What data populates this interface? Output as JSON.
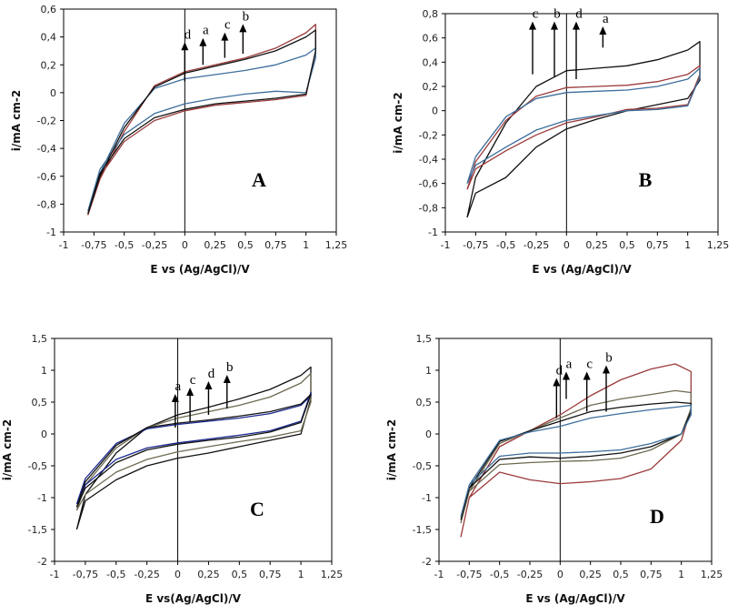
{
  "colors": {
    "black": "#111111",
    "red": "#9b3a3a",
    "blue": "#3d6e9c",
    "olive": "#6e6a52",
    "navy": "#1a2890"
  },
  "chart_data": [
    {
      "type": "line",
      "panel_label": "A",
      "xlabel": "E vs (Ag/AgCl)/V",
      "ylabel": "i/mA cm-2",
      "xlim": [
        -1,
        1.25
      ],
      "ylim": [
        -1,
        0.6
      ],
      "xticks": [
        "-1",
        "-0,75",
        "-0,5",
        "-0,25",
        "0",
        "0,25",
        "0,5",
        "0,75",
        "1",
        "1,25"
      ],
      "yticks": [
        "0,6",
        "0,4",
        "0,2",
        "0",
        "-0,2",
        "-0,4",
        "-0,6",
        "-0,8",
        "-1"
      ],
      "arrows": [
        {
          "label": "d",
          "x": 0.0,
          "y_from": 0.08,
          "y_to": 0.35
        },
        {
          "label": "a",
          "x": 0.15,
          "y_from": 0.2,
          "y_to": 0.38
        },
        {
          "label": "c",
          "x": 0.33,
          "y_from": 0.25,
          "y_to": 0.42
        },
        {
          "label": "b",
          "x": 0.48,
          "y_from": 0.28,
          "y_to": 0.48
        }
      ],
      "series": [
        {
          "color": "#9b3a3a",
          "x": [
            -0.8,
            -0.7,
            -0.5,
            -0.25,
            0,
            0.25,
            0.5,
            0.75,
            1.0,
            1.08,
            1.08,
            1.0,
            0.75,
            0.5,
            0.25,
            0,
            -0.25,
            -0.5,
            -0.7,
            -0.8
          ],
          "y": [
            -0.88,
            -0.62,
            -0.28,
            0.05,
            0.15,
            0.2,
            0.25,
            0.32,
            0.43,
            0.49,
            0.3,
            -0.02,
            -0.05,
            -0.07,
            -0.09,
            -0.13,
            -0.2,
            -0.35,
            -0.6,
            -0.88
          ]
        },
        {
          "color": "#3d6e9c",
          "x": [
            -0.8,
            -0.7,
            -0.5,
            -0.25,
            0,
            0.25,
            0.5,
            0.75,
            1.0,
            1.08,
            1.08,
            1.0,
            0.75,
            0.5,
            0.25,
            0,
            -0.25,
            -0.5,
            -0.7,
            -0.8
          ],
          "y": [
            -0.85,
            -0.58,
            -0.22,
            0.03,
            0.1,
            0.13,
            0.16,
            0.2,
            0.27,
            0.32,
            0.25,
            0.0,
            0.01,
            -0.01,
            -0.04,
            -0.08,
            -0.15,
            -0.3,
            -0.55,
            -0.85
          ]
        },
        {
          "color": "#111111",
          "x": [
            -0.8,
            -0.7,
            -0.5,
            -0.25,
            0,
            0.25,
            0.5,
            0.75,
            1.0,
            1.08,
            1.08,
            1.0,
            0.75,
            0.5,
            0.25,
            0,
            -0.25,
            -0.5,
            -0.7,
            -0.8
          ],
          "y": [
            -0.87,
            -0.6,
            -0.25,
            0.04,
            0.14,
            0.19,
            0.24,
            0.3,
            0.4,
            0.45,
            0.3,
            -0.01,
            -0.04,
            -0.06,
            -0.08,
            -0.12,
            -0.18,
            -0.33,
            -0.58,
            -0.87
          ]
        }
      ]
    },
    {
      "type": "line",
      "panel_label": "B",
      "xlabel": "E vs (Ag/AgCl)/V",
      "ylabel": "i/mA cm-2",
      "xlim": [
        -1,
        1.25
      ],
      "ylim": [
        -1,
        0.8
      ],
      "xticks": [
        "-1",
        "-0,75",
        "-0,5",
        "-0,25",
        "0",
        "0,25",
        "0,5",
        "0,75",
        "1",
        "1,25"
      ],
      "yticks": [
        "0,8",
        "0,6",
        "0,4",
        "0,2",
        "0",
        "-0,2",
        "-0,4",
        "-0,6",
        "-0,8",
        "-1"
      ],
      "arrows": [
        {
          "label": "c",
          "x": -0.28,
          "y_from": 0.3,
          "y_to": 0.72
        },
        {
          "label": "b",
          "x": -0.1,
          "y_from": 0.28,
          "y_to": 0.72
        },
        {
          "label": "d",
          "x": 0.08,
          "y_from": 0.26,
          "y_to": 0.72
        },
        {
          "label": "a",
          "x": 0.3,
          "y_from": 0.52,
          "y_to": 0.68
        }
      ],
      "series": [
        {
          "color": "#111111",
          "x": [
            -0.82,
            -0.75,
            -0.5,
            -0.25,
            0,
            0.25,
            0.5,
            0.75,
            1.0,
            1.1,
            1.1,
            1.0,
            0.75,
            0.5,
            0.25,
            0,
            -0.25,
            -0.5,
            -0.75,
            -0.82
          ],
          "y": [
            -0.88,
            -0.55,
            -0.1,
            0.2,
            0.33,
            0.35,
            0.37,
            0.42,
            0.5,
            0.57,
            0.25,
            0.1,
            0.05,
            0.0,
            -0.07,
            -0.15,
            -0.3,
            -0.55,
            -0.68,
            -0.88
          ]
        },
        {
          "color": "#9b3a3a",
          "x": [
            -0.82,
            -0.75,
            -0.5,
            -0.25,
            0,
            0.25,
            0.5,
            0.75,
            1.0,
            1.1,
            1.1,
            1.0,
            0.75,
            0.5,
            0.25,
            0,
            -0.25,
            -0.5,
            -0.75,
            -0.82
          ],
          "y": [
            -0.65,
            -0.42,
            -0.08,
            0.12,
            0.19,
            0.2,
            0.21,
            0.24,
            0.3,
            0.37,
            0.3,
            0.05,
            0.02,
            0.01,
            -0.05,
            -0.1,
            -0.2,
            -0.33,
            -0.48,
            -0.65
          ]
        },
        {
          "color": "#3d6e9c",
          "x": [
            -0.82,
            -0.75,
            -0.5,
            -0.25,
            0,
            0.25,
            0.5,
            0.75,
            1.0,
            1.1,
            1.1,
            1.0,
            0.75,
            0.5,
            0.25,
            0,
            -0.25,
            -0.5,
            -0.75,
            -0.82
          ],
          "y": [
            -0.6,
            -0.38,
            -0.05,
            0.1,
            0.15,
            0.16,
            0.17,
            0.2,
            0.26,
            0.35,
            0.28,
            0.04,
            0.01,
            0.0,
            -0.04,
            -0.08,
            -0.16,
            -0.3,
            -0.45,
            -0.6
          ]
        }
      ]
    },
    {
      "type": "line",
      "panel_label": "C",
      "xlabel": "E vs(Ag/AgCl)/V",
      "ylabel": "i/mA cm-2",
      "xlim": [
        -1,
        1.25
      ],
      "ylim": [
        -2,
        1.5
      ],
      "xticks": [
        "-1",
        "-0,75",
        "-0,5",
        "-0,25",
        "0",
        "0,25",
        "0,5",
        "0,75",
        "1",
        "1,25"
      ],
      "yticks": [
        "1,5",
        "1",
        "0,5",
        "0",
        "-0,5",
        "-1",
        "-1,5",
        "-2"
      ],
      "arrows": [
        {
          "label": "a",
          "x": -0.02,
          "y_from": 0.1,
          "y_to": 0.6
        },
        {
          "label": "c",
          "x": 0.1,
          "y_from": 0.2,
          "y_to": 0.7
        },
        {
          "label": "d",
          "x": 0.25,
          "y_from": 0.3,
          "y_to": 0.8
        },
        {
          "label": "b",
          "x": 0.4,
          "y_from": 0.4,
          "y_to": 0.9
        }
      ],
      "series": [
        {
          "color": "#111111",
          "x": [
            -0.82,
            -0.75,
            -0.5,
            -0.25,
            0,
            0.25,
            0.5,
            0.75,
            1.0,
            1.08,
            1.08,
            1.0,
            0.75,
            0.5,
            0.25,
            0,
            -0.25,
            -0.5,
            -0.75,
            -0.82
          ],
          "y": [
            -1.5,
            -0.95,
            -0.3,
            0.1,
            0.3,
            0.42,
            0.55,
            0.7,
            0.92,
            1.05,
            0.55,
            0.0,
            -0.1,
            -0.2,
            -0.3,
            -0.38,
            -0.5,
            -0.72,
            -1.05,
            -1.5
          ]
        },
        {
          "color": "#6e6a52",
          "x": [
            -0.82,
            -0.75,
            -0.5,
            -0.25,
            0,
            0.25,
            0.5,
            0.75,
            1.0,
            1.08,
            1.08,
            1.0,
            0.75,
            0.5,
            0.25,
            0,
            -0.25,
            -0.5,
            -0.75,
            -0.82
          ],
          "y": [
            -1.2,
            -0.8,
            -0.22,
            0.1,
            0.25,
            0.35,
            0.45,
            0.58,
            0.8,
            0.95,
            0.5,
            0.05,
            -0.05,
            -0.12,
            -0.2,
            -0.28,
            -0.4,
            -0.6,
            -0.95,
            -1.2
          ]
        },
        {
          "color": "#1a2890",
          "x": [
            -0.82,
            -0.75,
            -0.5,
            -0.25,
            0,
            0.25,
            0.5,
            0.75,
            1.0,
            1.08,
            1.08,
            1.0,
            0.75,
            0.5,
            0.25,
            0,
            -0.25,
            -0.5,
            -0.75,
            -0.82
          ],
          "y": [
            -1.1,
            -0.7,
            -0.15,
            0.08,
            0.15,
            0.2,
            0.25,
            0.32,
            0.45,
            0.6,
            0.65,
            0.2,
            0.05,
            -0.02,
            -0.08,
            -0.14,
            -0.22,
            -0.4,
            -0.8,
            -1.1
          ]
        },
        {
          "color": "#111111",
          "x": [
            -0.82,
            -0.75,
            -0.5,
            -0.25,
            0,
            0.25,
            0.5,
            0.75,
            1.0,
            1.08,
            1.08,
            1.0,
            0.75,
            0.5,
            0.25,
            0,
            -0.25,
            -0.5,
            -0.75,
            -0.82
          ],
          "y": [
            -1.15,
            -0.75,
            -0.18,
            0.1,
            0.17,
            0.22,
            0.28,
            0.35,
            0.47,
            0.62,
            0.62,
            0.18,
            0.03,
            -0.05,
            -0.1,
            -0.16,
            -0.25,
            -0.45,
            -0.85,
            -1.15
          ]
        }
      ]
    },
    {
      "type": "line",
      "panel_label": "D",
      "xlabel": "E vs (Ag/AgCl)/V",
      "ylabel": "i/mA cm-2",
      "xlim": [
        -1,
        1.25
      ],
      "ylim": [
        -2,
        1.5
      ],
      "xticks": [
        "-1",
        "-0,75",
        "-0,5",
        "-0,25",
        "0",
        "0,25",
        "0,5",
        "0,75",
        "1",
        "1,25"
      ],
      "yticks": [
        "1,5",
        "1",
        "0,5",
        "0",
        "-0,5",
        "-1",
        "-1,5",
        "-2"
      ],
      "arrows": [
        {
          "label": "d",
          "x": -0.03,
          "y_from": 0.25,
          "y_to": 0.85
        },
        {
          "label": "a",
          "x": 0.05,
          "y_from": 0.55,
          "y_to": 0.95
        },
        {
          "label": "c",
          "x": 0.22,
          "y_from": 0.35,
          "y_to": 0.95
        },
        {
          "label": "b",
          "x": 0.38,
          "y_from": 0.35,
          "y_to": 1.05
        }
      ],
      "series": [
        {
          "color": "#9b3a3a",
          "x": [
            -0.82,
            -0.75,
            -0.5,
            -0.25,
            0,
            0.25,
            0.5,
            0.75,
            0.95,
            1.08,
            1.08,
            1.0,
            0.75,
            0.5,
            0.25,
            0,
            -0.25,
            -0.5,
            -0.75,
            -0.82
          ],
          "y": [
            -1.62,
            -1.0,
            -0.2,
            0.05,
            0.3,
            0.6,
            0.85,
            1.02,
            1.1,
            0.98,
            0.4,
            -0.1,
            -0.55,
            -0.7,
            -0.75,
            -0.78,
            -0.72,
            -0.6,
            -1.0,
            -1.62
          ]
        },
        {
          "color": "#6e6a52",
          "x": [
            -0.82,
            -0.75,
            -0.5,
            -0.25,
            0,
            0.25,
            0.5,
            0.75,
            0.95,
            1.08,
            1.08,
            1.0,
            0.75,
            0.5,
            0.25,
            0,
            -0.25,
            -0.5,
            -0.75,
            -0.82
          ],
          "y": [
            -1.4,
            -0.9,
            -0.15,
            0.05,
            0.25,
            0.45,
            0.55,
            0.62,
            0.68,
            0.65,
            0.4,
            0.0,
            -0.25,
            -0.38,
            -0.42,
            -0.43,
            -0.45,
            -0.48,
            -0.9,
            -1.4
          ]
        },
        {
          "color": "#111111",
          "x": [
            -0.82,
            -0.75,
            -0.5,
            -0.25,
            0,
            0.25,
            0.5,
            0.75,
            0.95,
            1.08,
            1.08,
            1.0,
            0.75,
            0.5,
            0.25,
            0,
            -0.25,
            -0.5,
            -0.75,
            -0.82
          ],
          "y": [
            -1.35,
            -0.85,
            -0.12,
            0.05,
            0.2,
            0.35,
            0.42,
            0.47,
            0.5,
            0.48,
            0.35,
            0.0,
            -0.2,
            -0.3,
            -0.35,
            -0.38,
            -0.36,
            -0.4,
            -0.85,
            -1.35
          ]
        },
        {
          "color": "#3d6e9c",
          "x": [
            -0.82,
            -0.75,
            -0.5,
            -0.25,
            0,
            0.25,
            0.5,
            0.75,
            0.95,
            1.08,
            1.08,
            1.0,
            0.75,
            0.5,
            0.25,
            0,
            -0.25,
            -0.5,
            -0.75,
            -0.82
          ],
          "y": [
            -1.3,
            -0.8,
            -0.1,
            0.03,
            0.12,
            0.25,
            0.32,
            0.38,
            0.42,
            0.45,
            0.3,
            0.0,
            -0.15,
            -0.25,
            -0.28,
            -0.3,
            -0.3,
            -0.35,
            -0.8,
            -1.3
          ]
        }
      ]
    }
  ]
}
